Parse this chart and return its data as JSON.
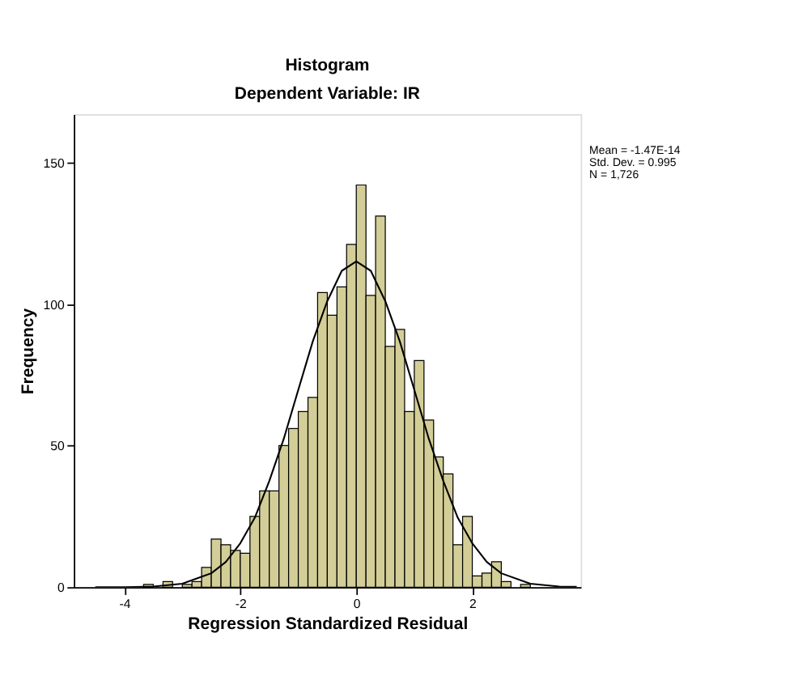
{
  "chart_data": {
    "type": "histogram",
    "title": "Histogram",
    "subtitle": "Dependent Variable: IR",
    "xlabel": "Regression Standardized Residual",
    "ylabel": "Frequency",
    "bins": [
      -3.667,
      -3.5,
      -3.333,
      -3.167,
      -3.0,
      -2.833,
      -2.667,
      -2.5,
      -2.333,
      -2.167,
      -2.0,
      -1.833,
      -1.667,
      -1.5,
      -1.333,
      -1.167,
      -1.0,
      -0.833,
      -0.667,
      -0.5,
      -0.333,
      -0.167,
      0.0,
      0.167,
      0.333,
      0.5,
      0.667,
      0.833,
      1.0,
      1.167,
      1.333,
      1.5,
      1.667,
      1.833,
      2.0,
      2.167,
      2.333,
      2.5,
      2.667,
      2.833,
      3.0
    ],
    "values": [
      1,
      null,
      2,
      0,
      1,
      2,
      7,
      17,
      15,
      13,
      12,
      25,
      34,
      34,
      50,
      56,
      62,
      67,
      104,
      96,
      106,
      121,
      142,
      103,
      131,
      85,
      91,
      62,
      80,
      59,
      46,
      40,
      15,
      25,
      4,
      5,
      9,
      2,
      0,
      1
    ],
    "color": "#d3ce97",
    "series": [
      {
        "type": "line",
        "color": "#000000",
        "x": [
          -4.5,
          -4.0,
          -3.5,
          -3.0,
          -2.5,
          -2.25,
          -2.0,
          -1.75,
          -1.5,
          -1.25,
          -1.0,
          -0.75,
          -0.5,
          -0.25,
          0.0,
          0.25,
          0.5,
          0.75,
          1.0,
          1.25,
          1.5,
          1.75,
          2.0,
          2.25,
          2.5,
          3.0,
          3.5,
          3.8
        ],
        "values": [
          0,
          0,
          0.2,
          1.2,
          4.9,
          8.9,
          15.5,
          24.5,
          37.5,
          52.4,
          69.7,
          86.8,
          101,
          111.7,
          115,
          111.7,
          101,
          86.8,
          69.7,
          52.4,
          37.5,
          24.5,
          15.5,
          8.9,
          4.9,
          1.2,
          0.2,
          0.1
        ]
      }
    ],
    "xlim": [
      -4.87,
      3.87
    ],
    "ylim": [
      0,
      167
    ],
    "xticks": [
      -4,
      -2,
      0,
      2
    ],
    "yticks": [
      0,
      50,
      100,
      150
    ],
    "grid": false,
    "legend": false,
    "annotations": [
      "Mean = -1.47E-14",
      "Std. Dev. = 0.995",
      "N = 1,726"
    ]
  }
}
